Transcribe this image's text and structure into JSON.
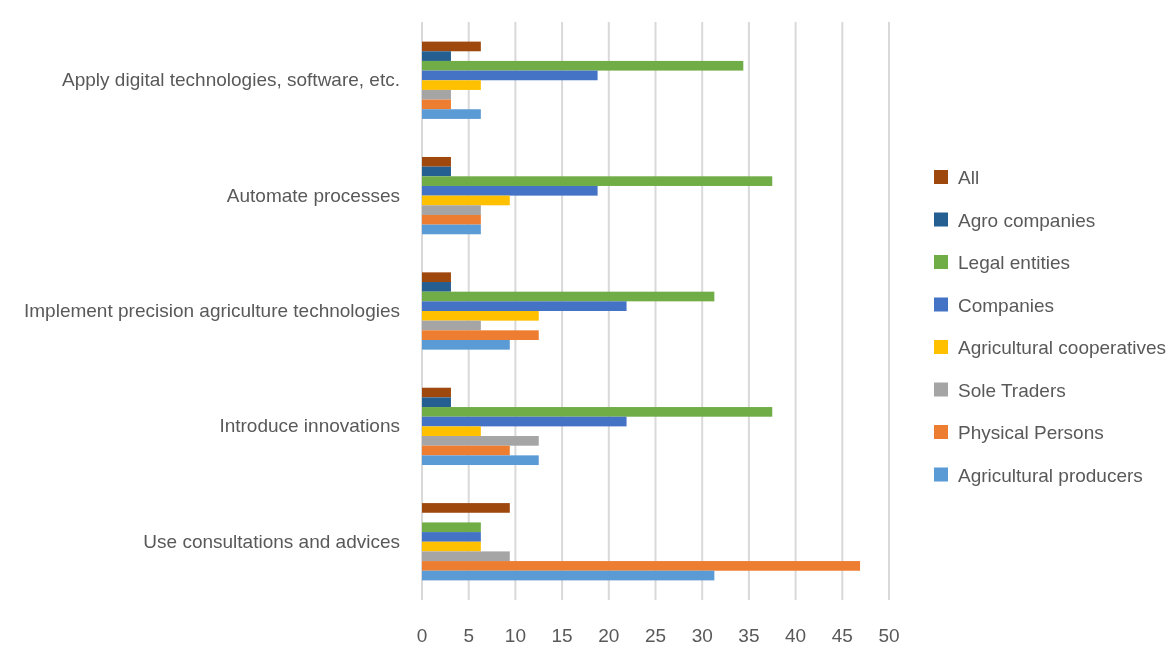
{
  "chart_data": {
    "type": "bar",
    "orientation": "horizontal",
    "categories": [
      "Apply digital technologies, software, etc.",
      "Automate processes",
      "Implement precision agriculture technologies",
      "Introduce innovations",
      "Use consultations and advices"
    ],
    "series": [
      {
        "name": "All",
        "color": "#9e480e",
        "values": [
          6.3,
          3.1,
          3.1,
          3.1,
          9.4
        ]
      },
      {
        "name": "Agro companies",
        "color": "#255e91",
        "values": [
          3.1,
          3.1,
          3.1,
          3.1,
          0
        ]
      },
      {
        "name": "Legal entities",
        "color": "#70ad47",
        "values": [
          34.4,
          37.5,
          31.3,
          37.5,
          6.3
        ]
      },
      {
        "name": "Companies",
        "color": "#4472c4",
        "values": [
          18.8,
          18.8,
          21.9,
          21.9,
          6.3
        ]
      },
      {
        "name": "Agricultural cooperatives",
        "color": "#ffc000",
        "values": [
          6.3,
          9.4,
          12.5,
          6.3,
          6.3
        ]
      },
      {
        "name": "Sole Traders",
        "color": "#a5a5a5",
        "values": [
          3.1,
          6.3,
          6.3,
          12.5,
          9.4
        ]
      },
      {
        "name": "Physical Persons",
        "color": "#ed7d31",
        "values": [
          3.1,
          6.3,
          12.5,
          9.4,
          46.9
        ]
      },
      {
        "name": "Agricultural producers",
        "color": "#5b9bd5",
        "values": [
          6.3,
          6.3,
          9.4,
          12.5,
          31.3
        ]
      }
    ],
    "xlim": [
      0,
      50
    ],
    "xticks": [
      0,
      5,
      10,
      15,
      20,
      25,
      30,
      35,
      40,
      45,
      50
    ],
    "grid": "x",
    "legend": "right"
  }
}
